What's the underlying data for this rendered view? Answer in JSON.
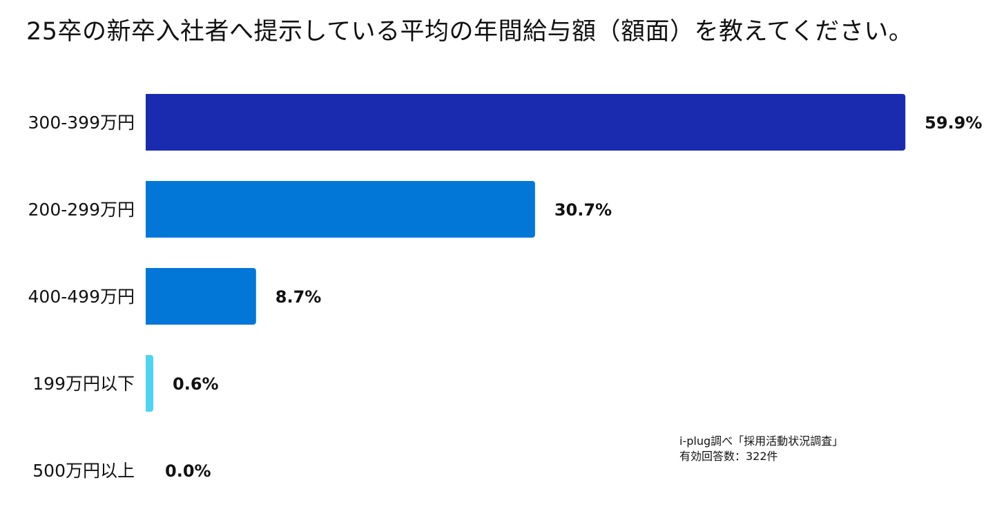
{
  "chart_data": {
    "type": "bar",
    "orientation": "horizontal",
    "title": "25卒の新卒入社者へ提示している平均の年間給与額（額面）を教えてください。",
    "categories": [
      "300-399万円",
      "200-299万円",
      "400-499万円",
      "199万円以下",
      "500万円以上"
    ],
    "values": [
      59.9,
      30.7,
      8.7,
      0.6,
      0.0
    ],
    "value_labels": [
      "59.9%",
      "30.7%",
      "8.7%",
      "0.6%",
      "0.0%"
    ],
    "bar_colors": [
      "#1a2bb0",
      "#0277d8",
      "#0277d8",
      "#4ed4f0",
      "#4ed4f0"
    ],
    "xlim": [
      0,
      60
    ],
    "xlabel": "",
    "ylabel": "",
    "grid": false,
    "legend": "none"
  },
  "source": {
    "line1": "i-plug調べ「採用活動状況調査」",
    "line2": "有効回答数：322件"
  }
}
